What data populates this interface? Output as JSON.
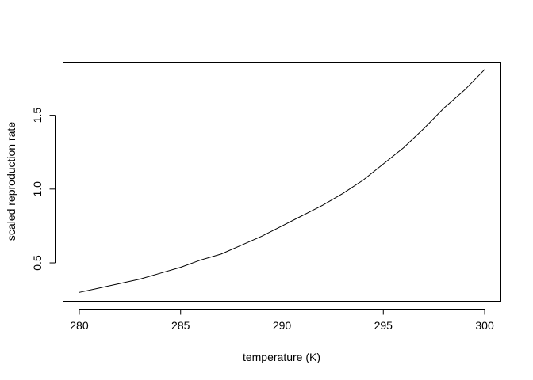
{
  "chart_data": {
    "type": "line",
    "title": "",
    "xlabel": "temperature (K)",
    "ylabel": "scaled reproduction rate",
    "xlim": [
      279.2,
      300.8
    ],
    "ylim": [
      0.24,
      1.86
    ],
    "xticks": [
      280,
      285,
      290,
      295,
      300
    ],
    "yticks": [
      0.5,
      1.0,
      1.5
    ],
    "xtick_labels": [
      "280",
      "285",
      "290",
      "295",
      "300"
    ],
    "ytick_labels": [
      "0.5",
      "1.0",
      "1.5"
    ],
    "grid": false,
    "legend": "none",
    "series": [
      {
        "color": "#000000",
        "x": [
          280,
          281,
          282,
          283,
          284,
          285,
          286,
          287,
          288,
          289,
          290,
          291,
          292,
          293,
          294,
          295,
          296,
          297,
          298,
          299,
          300
        ],
        "y": [
          0.3,
          0.33,
          0.36,
          0.39,
          0.43,
          0.47,
          0.52,
          0.56,
          0.62,
          0.68,
          0.75,
          0.82,
          0.89,
          0.97,
          1.06,
          1.17,
          1.28,
          1.41,
          1.55,
          1.67,
          1.81
        ]
      }
    ]
  }
}
